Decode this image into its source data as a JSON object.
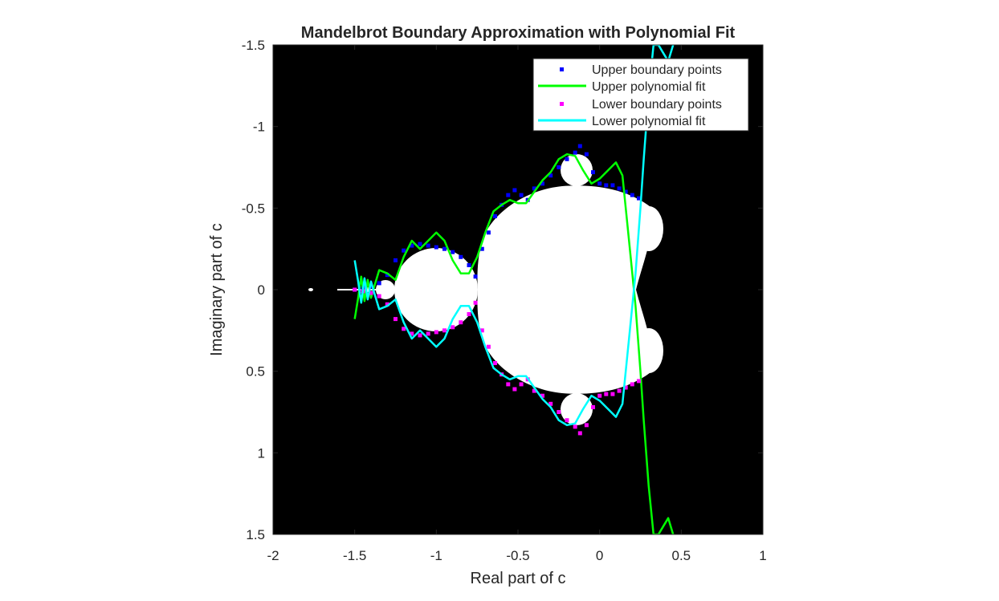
{
  "chart_data": {
    "type": "scatter",
    "title": "Mandelbrot Boundary Approximation with Polynomial Fit",
    "xlabel": "Real part of c",
    "ylabel": "Imaginary part of c",
    "xlim": [
      -2,
      1
    ],
    "ylim": [
      -1.5,
      1.5
    ],
    "y_direction": "reverse",
    "xticks": [
      -2,
      -1.5,
      -1,
      -0.5,
      0,
      0.5,
      1
    ],
    "xtick_labels": [
      "-2",
      "-1.5",
      "-1",
      "-0.5",
      "0",
      "0.5",
      "1"
    ],
    "yticks": [
      -1.5,
      -1,
      -0.5,
      0,
      0.5,
      1,
      1.5
    ],
    "ytick_labels": [
      "-1.5",
      "-1",
      "-0.5",
      "0",
      "0.5",
      "1",
      "1.5"
    ],
    "background_image": "Mandelbrot set rendered white on black",
    "legend_position": "top-right",
    "colors": {
      "upper_points": "#0000ff",
      "upper_fit": "#00ff00",
      "lower_points": "#ff00ff",
      "lower_fit": "#00ffff",
      "set": "#ffffff",
      "background": "#000000"
    },
    "series": [
      {
        "name": "Upper boundary points",
        "kind": "points",
        "color": "#0000ff",
        "x": [
          -1.5,
          -1.45,
          -1.4,
          -1.35,
          -1.3,
          -1.25,
          -1.2,
          -1.15,
          -1.1,
          -1.05,
          -1.0,
          -0.95,
          -0.9,
          -0.85,
          -0.8,
          -0.76,
          -0.72,
          -0.68,
          -0.64,
          -0.6,
          -0.56,
          -0.52,
          -0.48,
          -0.44,
          -0.4,
          -0.35,
          -0.3,
          -0.25,
          -0.2,
          -0.15,
          -0.12,
          -0.08,
          -0.04,
          0.0,
          0.04,
          0.08,
          0.12,
          0.16,
          0.2,
          0.24
        ],
        "y": [
          0,
          -0.01,
          -0.02,
          -0.04,
          -0.09,
          -0.18,
          -0.24,
          -0.27,
          -0.28,
          -0.27,
          -0.26,
          -0.25,
          -0.23,
          -0.2,
          -0.15,
          -0.08,
          -0.25,
          -0.35,
          -0.45,
          -0.52,
          -0.58,
          -0.61,
          -0.58,
          -0.55,
          -0.62,
          -0.65,
          -0.7,
          -0.75,
          -0.8,
          -0.84,
          -0.88,
          -0.83,
          -0.72,
          -0.65,
          -0.64,
          -0.64,
          -0.62,
          -0.6,
          -0.58,
          -0.56
        ]
      },
      {
        "name": "Upper polynomial fit",
        "kind": "line",
        "color": "#00ff00",
        "x": [
          -1.5,
          -1.48,
          -1.46,
          -1.44,
          -1.42,
          -1.4,
          -1.38,
          -1.35,
          -1.3,
          -1.25,
          -1.2,
          -1.15,
          -1.1,
          -1.05,
          -1.0,
          -0.95,
          -0.9,
          -0.85,
          -0.8,
          -0.75,
          -0.7,
          -0.65,
          -0.6,
          -0.55,
          -0.5,
          -0.45,
          -0.4,
          -0.35,
          -0.3,
          -0.25,
          -0.2,
          -0.15,
          -0.1,
          -0.05,
          0.0,
          0.05,
          0.1,
          0.14,
          0.18,
          0.22,
          0.25,
          0.27,
          0.3,
          0.33,
          0.36,
          0.39,
          0.42,
          0.45
        ],
        "y": [
          0.18,
          0.06,
          -0.08,
          0.07,
          -0.06,
          0.05,
          -0.02,
          -0.12,
          -0.1,
          -0.06,
          -0.2,
          -0.3,
          -0.25,
          -0.3,
          -0.35,
          -0.3,
          -0.18,
          -0.1,
          -0.1,
          -0.2,
          -0.35,
          -0.48,
          -0.52,
          -0.55,
          -0.53,
          -0.53,
          -0.6,
          -0.67,
          -0.72,
          -0.8,
          -0.83,
          -0.82,
          -0.73,
          -0.65,
          -0.68,
          -0.73,
          -0.78,
          -0.7,
          -0.3,
          0.1,
          0.5,
          0.8,
          1.2,
          1.5,
          1.5,
          1.45,
          1.4,
          1.5
        ]
      },
      {
        "name": "Lower boundary points",
        "kind": "points",
        "color": "#ff00ff",
        "x": [
          -1.5,
          -1.45,
          -1.4,
          -1.35,
          -1.3,
          -1.25,
          -1.2,
          -1.15,
          -1.1,
          -1.05,
          -1.0,
          -0.95,
          -0.9,
          -0.85,
          -0.8,
          -0.76,
          -0.72,
          -0.68,
          -0.64,
          -0.6,
          -0.56,
          -0.52,
          -0.48,
          -0.44,
          -0.4,
          -0.35,
          -0.3,
          -0.25,
          -0.2,
          -0.15,
          -0.12,
          -0.08,
          -0.04,
          0.0,
          0.04,
          0.08,
          0.12,
          0.16,
          0.2,
          0.24
        ],
        "y": [
          0,
          0.01,
          0.02,
          0.04,
          0.09,
          0.18,
          0.24,
          0.27,
          0.28,
          0.27,
          0.26,
          0.25,
          0.23,
          0.2,
          0.15,
          0.08,
          0.25,
          0.35,
          0.45,
          0.52,
          0.58,
          0.61,
          0.58,
          0.55,
          0.62,
          0.65,
          0.7,
          0.75,
          0.8,
          0.84,
          0.88,
          0.83,
          0.72,
          0.65,
          0.64,
          0.64,
          0.62,
          0.6,
          0.58,
          0.56
        ]
      },
      {
        "name": "Lower polynomial fit",
        "kind": "line",
        "color": "#00ffff",
        "x": [
          -1.5,
          -1.48,
          -1.46,
          -1.44,
          -1.42,
          -1.4,
          -1.38,
          -1.35,
          -1.3,
          -1.25,
          -1.2,
          -1.15,
          -1.1,
          -1.05,
          -1.0,
          -0.95,
          -0.9,
          -0.85,
          -0.8,
          -0.75,
          -0.7,
          -0.65,
          -0.6,
          -0.55,
          -0.5,
          -0.45,
          -0.4,
          -0.35,
          -0.3,
          -0.25,
          -0.2,
          -0.15,
          -0.1,
          -0.05,
          0.0,
          0.05,
          0.1,
          0.14,
          0.18,
          0.22,
          0.25,
          0.27,
          0.3,
          0.33,
          0.36,
          0.39,
          0.42,
          0.45
        ],
        "y": [
          -0.18,
          -0.06,
          0.08,
          -0.07,
          0.06,
          -0.05,
          0.02,
          0.12,
          0.1,
          0.06,
          0.2,
          0.3,
          0.25,
          0.3,
          0.35,
          0.3,
          0.18,
          0.1,
          0.1,
          0.2,
          0.35,
          0.48,
          0.52,
          0.55,
          0.53,
          0.53,
          0.6,
          0.67,
          0.72,
          0.8,
          0.83,
          0.82,
          0.73,
          0.65,
          0.68,
          0.73,
          0.78,
          0.7,
          0.3,
          -0.1,
          -0.5,
          -0.8,
          -1.2,
          -1.5,
          -1.5,
          -1.45,
          -1.4,
          -1.5
        ]
      }
    ]
  }
}
